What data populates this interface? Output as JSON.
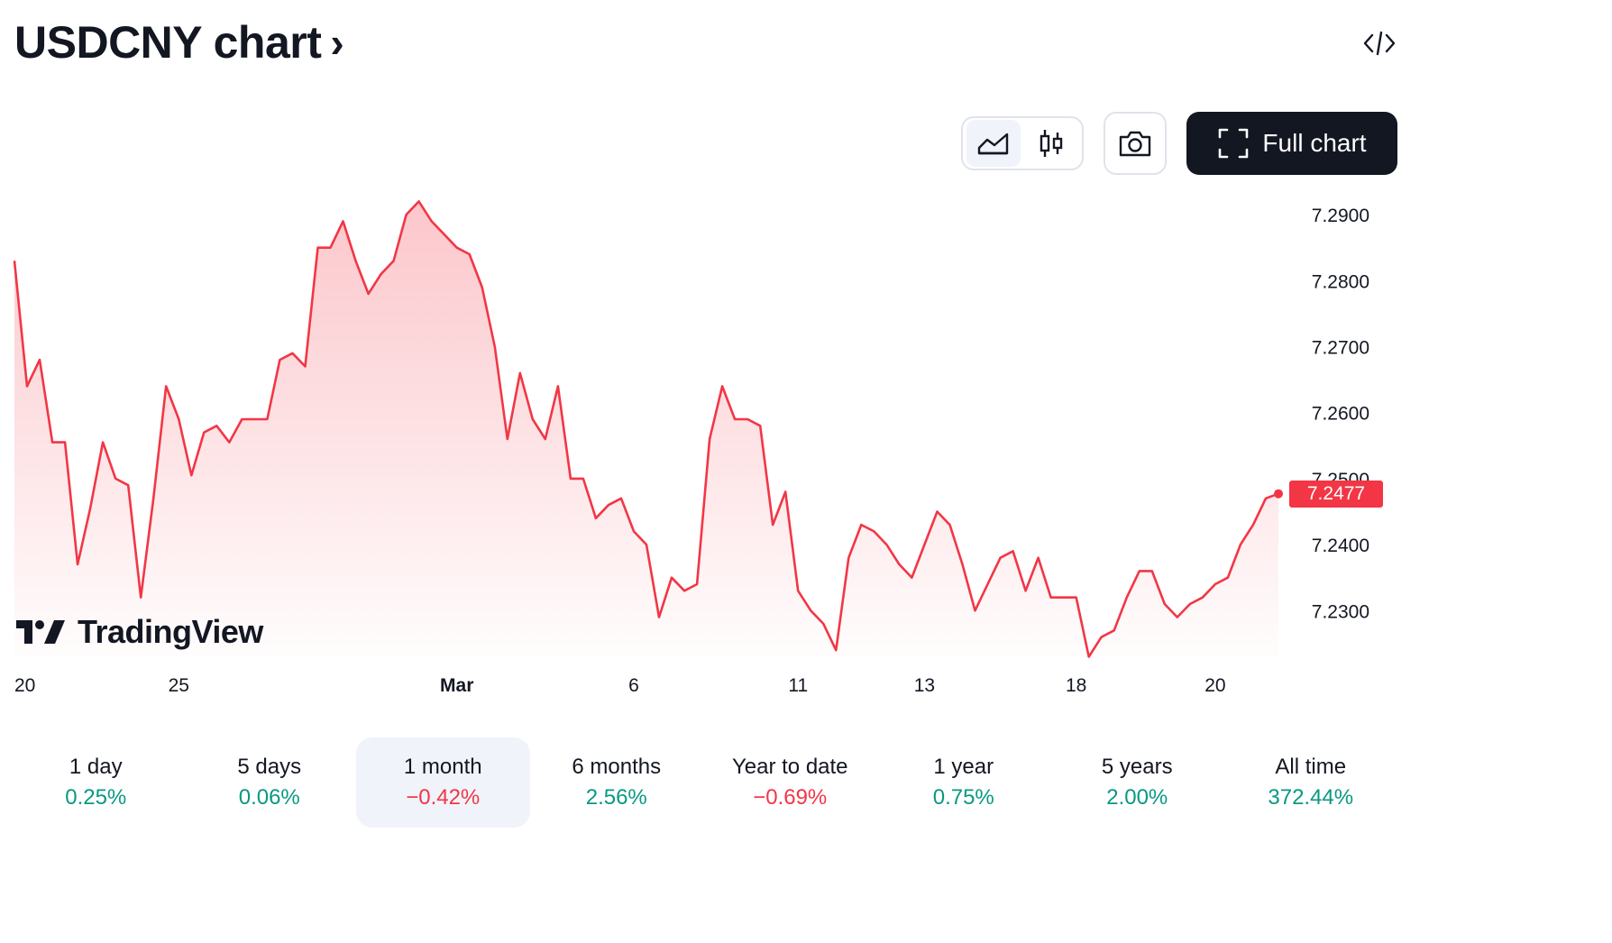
{
  "header": {
    "title": "USDCNY chart",
    "chevron": "›"
  },
  "toolbar": {
    "full_chart_label": "Full chart"
  },
  "brand": {
    "logo_text": "TradingView"
  },
  "colors": {
    "line": "#f23645",
    "positive": "#089981",
    "negative": "#f23645"
  },
  "ranges": [
    {
      "label": "1 day",
      "change": "0.25%",
      "direction": "positive",
      "active": false
    },
    {
      "label": "5 days",
      "change": "0.06%",
      "direction": "positive",
      "active": false
    },
    {
      "label": "1 month",
      "change": "−0.42%",
      "direction": "negative",
      "active": true
    },
    {
      "label": "6 months",
      "change": "2.56%",
      "direction": "positive",
      "active": false
    },
    {
      "label": "Year to date",
      "change": "−0.69%",
      "direction": "negative",
      "active": false
    },
    {
      "label": "1 year",
      "change": "0.75%",
      "direction": "positive",
      "active": false
    },
    {
      "label": "5 years",
      "change": "2.00%",
      "direction": "positive",
      "active": false
    },
    {
      "label": "All time",
      "change": "372.44%",
      "direction": "positive",
      "active": false
    }
  ],
  "chart_data": {
    "type": "area",
    "title": "USDCNY chart",
    "last_price": "7.2477",
    "y_tick_labels": [
      "7.2900",
      "7.2800",
      "7.2700",
      "7.2600",
      "7.2500",
      "7.2400",
      "7.2300"
    ],
    "y_ticks": [
      7.29,
      7.28,
      7.27,
      7.26,
      7.25,
      7.24,
      7.23
    ],
    "ylim": [
      7.2228,
      7.2952
    ],
    "x_tick_labels": [
      "20",
      "25",
      "Mar",
      "6",
      "11",
      "13",
      "18",
      "20"
    ],
    "x_tick_index": [
      0,
      13,
      35,
      49,
      62,
      72,
      84,
      95
    ],
    "x": [
      0,
      1,
      2,
      3,
      4,
      5,
      6,
      7,
      8,
      9,
      10,
      11,
      12,
      13,
      14,
      15,
      16,
      17,
      18,
      19,
      20,
      21,
      22,
      23,
      24,
      25,
      26,
      27,
      28,
      29,
      30,
      31,
      32,
      33,
      34,
      35,
      36,
      37,
      38,
      39,
      40,
      41,
      42,
      43,
      44,
      45,
      46,
      47,
      48,
      49,
      50,
      51,
      52,
      53,
      54,
      55,
      56,
      57,
      58,
      59,
      60,
      61,
      62,
      63,
      64,
      65,
      66,
      67,
      68,
      69,
      70,
      71,
      72,
      73,
      74,
      75,
      76,
      77,
      78,
      79,
      80,
      81,
      82,
      83,
      84,
      85,
      86,
      87,
      88,
      89,
      90,
      91,
      92,
      93,
      94,
      95,
      96,
      97,
      98,
      99,
      100
    ],
    "values": [
      7.283,
      7.264,
      7.268,
      7.2555,
      7.2555,
      7.237,
      7.2455,
      7.2555,
      7.25,
      7.249,
      7.232,
      7.247,
      7.264,
      7.259,
      7.2505,
      7.257,
      7.258,
      7.2555,
      7.259,
      7.259,
      7.259,
      7.268,
      7.269,
      7.267,
      7.285,
      7.285,
      7.289,
      7.283,
      7.278,
      7.281,
      7.283,
      7.29,
      7.292,
      7.289,
      7.287,
      7.285,
      7.284,
      7.279,
      7.27,
      7.256,
      7.266,
      7.259,
      7.256,
      7.264,
      7.25,
      7.25,
      7.244,
      7.246,
      7.247,
      7.242,
      7.24,
      7.229,
      7.235,
      7.233,
      7.234,
      7.256,
      7.264,
      7.259,
      7.259,
      7.258,
      7.243,
      7.248,
      7.233,
      7.23,
      7.228,
      7.224,
      7.238,
      7.243,
      7.242,
      7.24,
      7.237,
      7.235,
      7.24,
      7.245,
      7.243,
      7.237,
      7.23,
      7.234,
      7.238,
      7.239,
      7.233,
      7.238,
      7.232,
      7.232,
      7.232,
      7.223,
      7.226,
      7.227,
      7.232,
      7.236,
      7.236,
      7.231,
      7.229,
      7.231,
      7.232,
      7.234,
      7.235,
      7.24,
      7.243,
      7.247,
      7.2477
    ],
    "grid": false
  }
}
